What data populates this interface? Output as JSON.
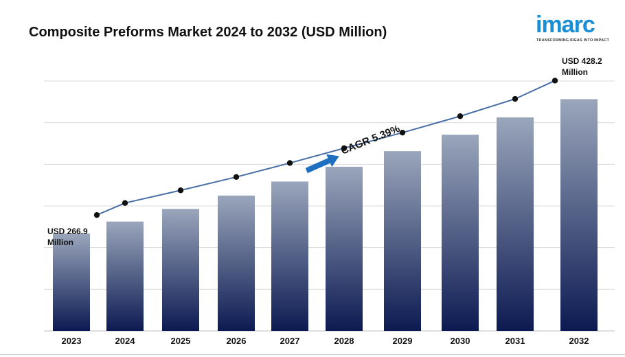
{
  "title": "Composite Preforms Market 2024 to 2032 (USD Million)",
  "logo": {
    "word": "imarc",
    "tagline": "TRANSFORMING IDEAS INTO IMPACT"
  },
  "colors": {
    "bar_top": "#9aa6bb",
    "bar_bottom": "#0c1a52",
    "line": "#4a6fa5",
    "marker": "#111111",
    "arrow": "#1f6fc1",
    "grid": "#d9d9d9",
    "logo": "#1a8fd6"
  },
  "chart_data": {
    "type": "bar",
    "title": "Composite Preforms Market 2024 to 2032 (USD Million)",
    "categories": [
      "2023",
      "2024",
      "2025",
      "2026",
      "2027",
      "2028",
      "2029",
      "2030",
      "2031",
      "2032"
    ],
    "series": [
      {
        "values": [
          266.9,
          281.3,
          296.5,
          312.5,
          329.3,
          347.1,
          365.8,
          385.5,
          406.3,
          428.2
        ]
      }
    ],
    "overlay_line": true,
    "ylim": [
      150,
      450
    ],
    "grid": true,
    "annotations": {
      "start_label": [
        "USD 266.9",
        "Million"
      ],
      "end_label": [
        "USD 428.2",
        "Million"
      ],
      "cagr": "CAGR  5.39%"
    }
  }
}
